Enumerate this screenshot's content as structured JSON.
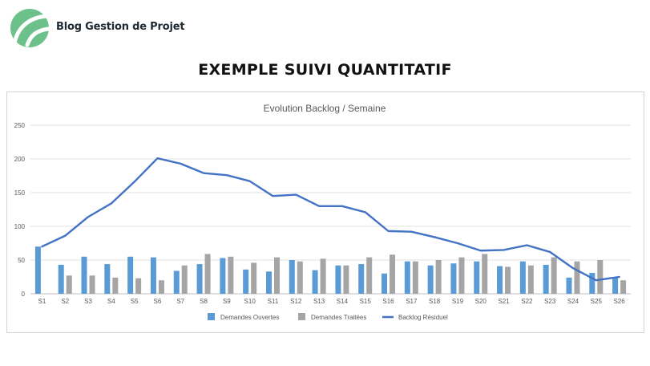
{
  "brand": {
    "name": "Blog Gestion de Projet"
  },
  "page": {
    "heading": "EXEMPLE SUIVI QUANTITATIF"
  },
  "colors": {
    "logo_green": "#6cc08a",
    "series_open": "#5b9bd5",
    "series_treated": "#a5a5a5",
    "series_backlog": "#4472c4",
    "grid": "#e0e0e0",
    "axis_text": "#595959"
  },
  "chart_data": {
    "type": "bar",
    "title": "Evolution Backlog / Semaine",
    "xlabel": "",
    "ylabel": "",
    "ylim": [
      0,
      250
    ],
    "yticks": [
      0,
      50,
      100,
      150,
      200,
      250
    ],
    "grid": true,
    "legend_position": "bottom",
    "categories": [
      "S1",
      "S2",
      "S3",
      "S4",
      "S5",
      "S6",
      "S7",
      "S8",
      "S9",
      "S10",
      "S11",
      "S12",
      "S13",
      "S14",
      "S15",
      "S16",
      "S17",
      "S18",
      "S19",
      "S20",
      "S21",
      "S22",
      "S23",
      "S24",
      "S25",
      "S26"
    ],
    "series": [
      {
        "name": "Demandes Ouvertes",
        "type": "bar",
        "values": [
          70,
          43,
          55,
          44,
          55,
          54,
          34,
          44,
          53,
          36,
          33,
          50,
          35,
          42,
          44,
          30,
          48,
          42,
          45,
          48,
          41,
          48,
          43,
          24,
          31,
          25
        ]
      },
      {
        "name": "Demandes Traitées",
        "type": "bar",
        "values": [
          0,
          27,
          27,
          24,
          23,
          20,
          42,
          59,
          55,
          46,
          54,
          48,
          52,
          42,
          54,
          58,
          48,
          50,
          54,
          59,
          40,
          42,
          54,
          48,
          50,
          20
        ]
      },
      {
        "name": "Backlog Résiduel",
        "type": "line",
        "values": [
          70,
          86,
          114,
          134,
          166,
          201,
          193,
          179,
          176,
          167,
          145,
          147,
          130,
          130,
          121,
          93,
          92,
          84,
          75,
          64,
          65,
          72,
          62,
          38,
          20,
          25
        ]
      }
    ]
  }
}
